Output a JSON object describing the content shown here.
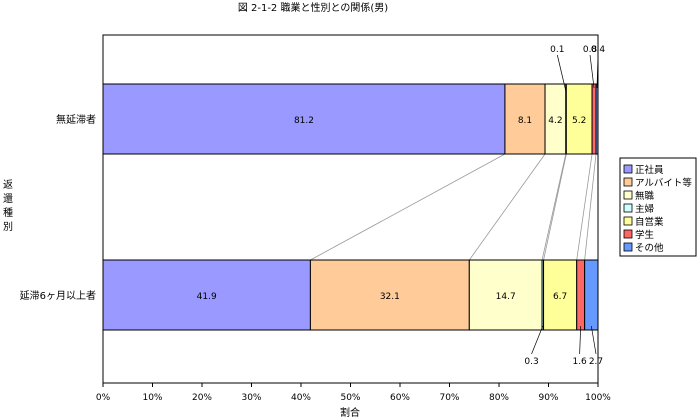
{
  "chart_data": {
    "type": "bar",
    "orientation": "horizontal",
    "stacked": "percent",
    "title": "図 2-1-2  職業と性別との関係(男)",
    "xlabel": "割合",
    "ylabel": "返還種別",
    "xlim": [
      0,
      100
    ],
    "x_ticks": [
      "0%",
      "10%",
      "20%",
      "30%",
      "40%",
      "50%",
      "60%",
      "70%",
      "80%",
      "90%",
      "100%"
    ],
    "grid": false,
    "legend_position": "right",
    "categories": [
      "無延滞者",
      "延滞6ヶ月以上者"
    ],
    "series": [
      {
        "name": "正社員",
        "color": "#9999ff",
        "values": [
          81.2,
          41.9
        ]
      },
      {
        "name": "アルバイト等",
        "color": "#ffcc99",
        "values": [
          8.1,
          32.1
        ]
      },
      {
        "name": "無職",
        "color": "#ffffcc",
        "values": [
          4.2,
          14.7
        ]
      },
      {
        "name": "主婦",
        "color": "#ccffff",
        "values": [
          0.1,
          0.3
        ]
      },
      {
        "name": "自営業",
        "color": "#ffff99",
        "values": [
          5.2,
          6.7
        ]
      },
      {
        "name": "学生",
        "color": "#ff6666",
        "values": [
          0.8,
          1.6
        ]
      },
      {
        "name": "その他",
        "color": "#6699ff",
        "values": [
          0.4,
          2.7
        ]
      }
    ],
    "data_labels": [
      [
        "81.2",
        "8.1",
        "4.2",
        "0.1",
        "5.2",
        "0.8",
        "0.4"
      ],
      [
        "41.9",
        "32.1",
        "14.7",
        "0.3",
        "6.7",
        "1.6",
        "2.7"
      ]
    ]
  }
}
